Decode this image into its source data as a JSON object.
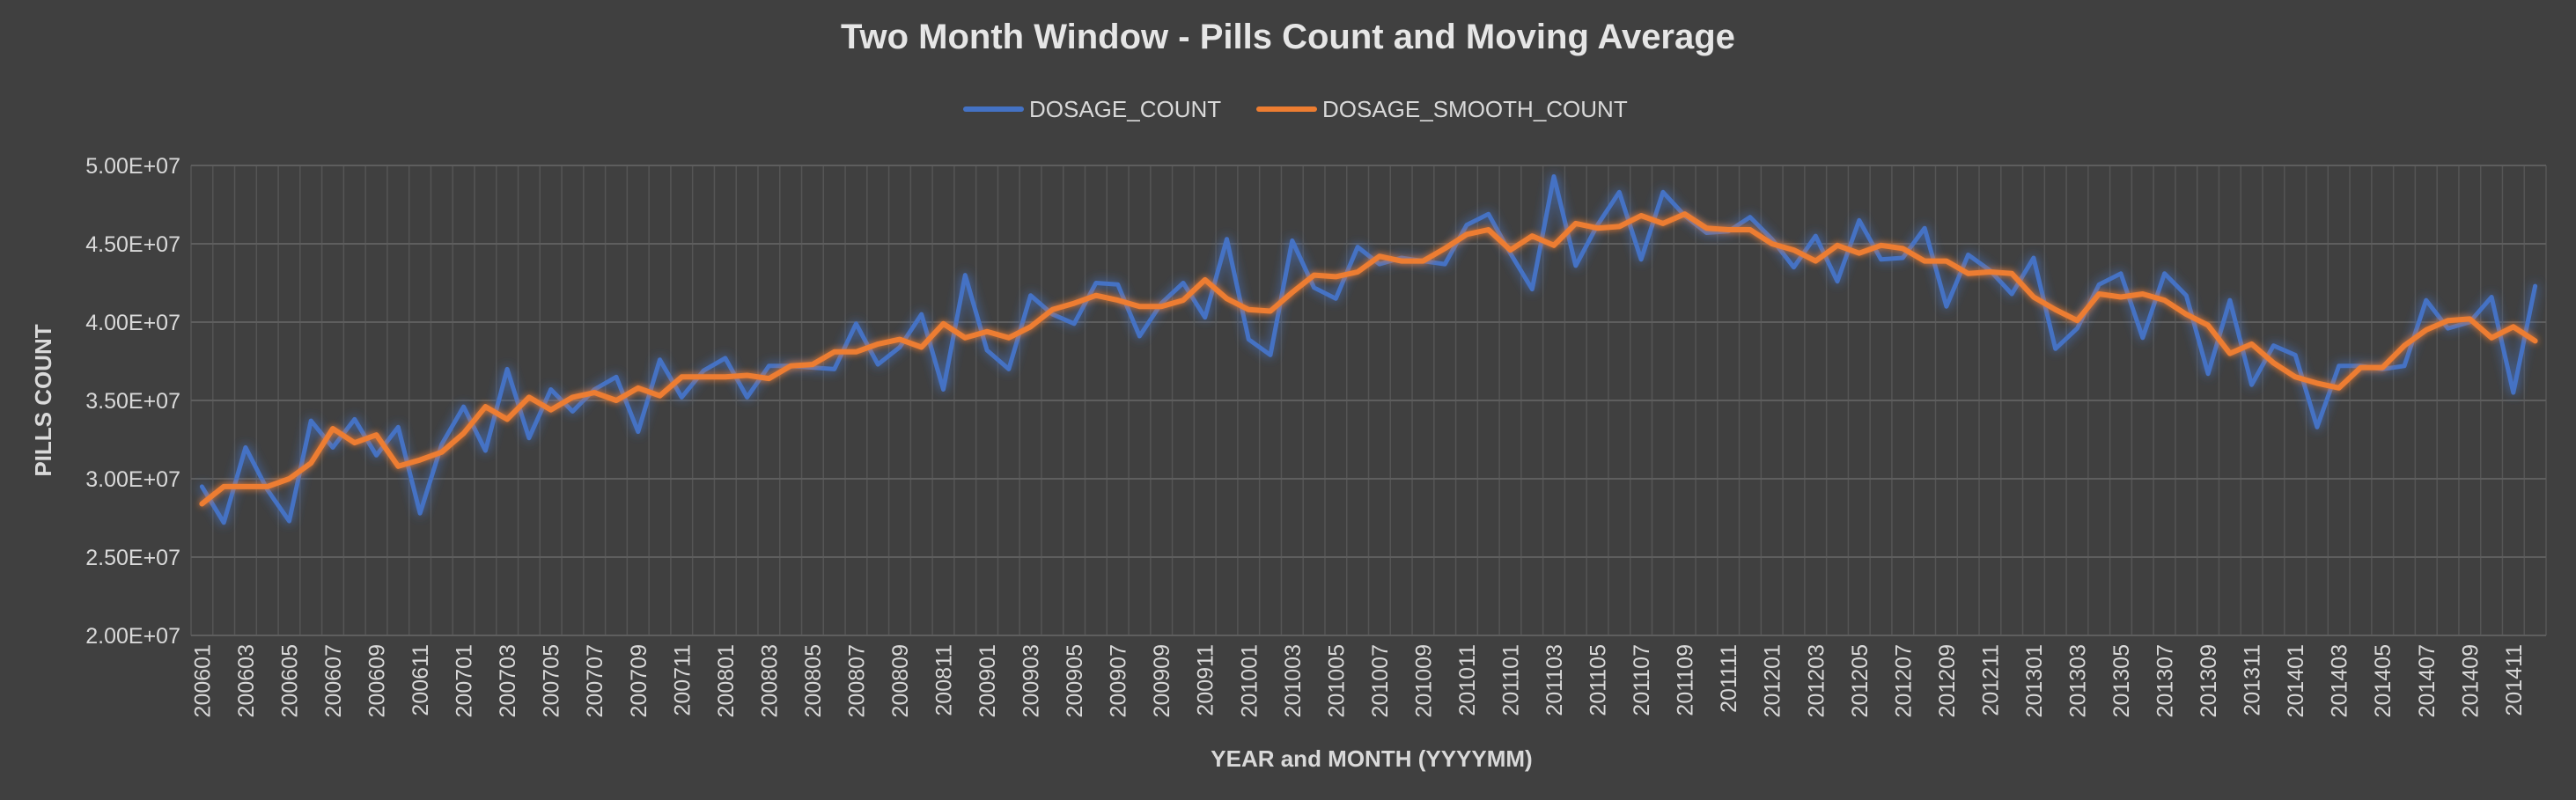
{
  "chart_data": {
    "type": "line",
    "title": "Two Month Window - Pills Count and Moving Average",
    "xlabel": "YEAR and MONTH (YYYYMM)",
    "ylabel": "PILLS COUNT",
    "ylim": [
      20000000,
      50000000
    ],
    "y_ticks": [
      "2.00E+07",
      "2.50E+07",
      "3.00E+07",
      "3.50E+07",
      "4.00E+07",
      "4.50E+07",
      "5.00E+07"
    ],
    "grid": true,
    "legend_position": "top-center",
    "x": [
      "200601",
      "200602",
      "200603",
      "200604",
      "200605",
      "200606",
      "200607",
      "200608",
      "200609",
      "200610",
      "200611",
      "200612",
      "200701",
      "200702",
      "200703",
      "200704",
      "200705",
      "200706",
      "200707",
      "200708",
      "200709",
      "200710",
      "200711",
      "200712",
      "200801",
      "200802",
      "200803",
      "200804",
      "200805",
      "200806",
      "200807",
      "200808",
      "200809",
      "200810",
      "200811",
      "200812",
      "200901",
      "200902",
      "200903",
      "200904",
      "200905",
      "200906",
      "200907",
      "200908",
      "200909",
      "200910",
      "200911",
      "200912",
      "201001",
      "201002",
      "201003",
      "201004",
      "201005",
      "201006",
      "201007",
      "201008",
      "201009",
      "201010",
      "201011",
      "201012",
      "201101",
      "201102",
      "201103",
      "201104",
      "201105",
      "201106",
      "201107",
      "201108",
      "201109",
      "201110",
      "201111",
      "201112",
      "201201",
      "201202",
      "201203",
      "201204",
      "201205",
      "201206",
      "201207",
      "201208",
      "201209",
      "201210",
      "201211",
      "201212",
      "201301",
      "201302",
      "201303",
      "201304",
      "201305",
      "201306",
      "201307",
      "201308",
      "201309",
      "201310",
      "201311",
      "201312",
      "201401",
      "201402",
      "201403",
      "201404",
      "201405",
      "201406",
      "201407",
      "201408",
      "201409",
      "201410",
      "201411",
      "201412"
    ],
    "x_tick_labels": [
      "200601",
      "200603",
      "200605",
      "200607",
      "200609",
      "200611",
      "200701",
      "200703",
      "200705",
      "200707",
      "200709",
      "200711",
      "200801",
      "200803",
      "200805",
      "200807",
      "200809",
      "200811",
      "200901",
      "200903",
      "200905",
      "200907",
      "200909",
      "200911",
      "201001",
      "201003",
      "201005",
      "201007",
      "201009",
      "201011",
      "201101",
      "201103",
      "201105",
      "201107",
      "201109",
      "201111",
      "201201",
      "201203",
      "201205",
      "201207",
      "201209",
      "201211",
      "201301",
      "201303",
      "201305",
      "201307",
      "201309",
      "201311",
      "201401",
      "201403",
      "201405",
      "201407",
      "201409",
      "201411"
    ],
    "series": [
      {
        "name": "DOSAGE_COUNT",
        "color": "#4472c4",
        "values": [
          29500000,
          27200000,
          32000000,
          29300000,
          27300000,
          33700000,
          32000000,
          33800000,
          31500000,
          33300000,
          27800000,
          32200000,
          34600000,
          31800000,
          37000000,
          32600000,
          35700000,
          34300000,
          35700000,
          36500000,
          33000000,
          37600000,
          35200000,
          36900000,
          37700000,
          35200000,
          37200000,
          37200000,
          37100000,
          37000000,
          39900000,
          37300000,
          38400000,
          40500000,
          35700000,
          43000000,
          38200000,
          37000000,
          41700000,
          40500000,
          39900000,
          42500000,
          42400000,
          39100000,
          41200000,
          42500000,
          40300000,
          45300000,
          38900000,
          37900000,
          45200000,
          42200000,
          41500000,
          44800000,
          43700000,
          44100000,
          43900000,
          43700000,
          46200000,
          46900000,
          44400000,
          42100000,
          49300000,
          43600000,
          46200000,
          48300000,
          44000000,
          48300000,
          46800000,
          45700000,
          45800000,
          46700000,
          45300000,
          43500000,
          45500000,
          42600000,
          46500000,
          44000000,
          44100000,
          46000000,
          41000000,
          44300000,
          43300000,
          41800000,
          44100000,
          38300000,
          39600000,
          42400000,
          43100000,
          39000000,
          43100000,
          41700000,
          36700000,
          41400000,
          36000000,
          38500000,
          37900000,
          33300000,
          37200000,
          37200000,
          37000000,
          37200000,
          41400000,
          39600000,
          40000000,
          41600000,
          35500000,
          42300000
        ]
      },
      {
        "name": "DOSAGE_SMOOTH_COUNT",
        "color": "#ed7d31",
        "values": [
          28400000,
          29500000,
          29500000,
          29500000,
          30000000,
          31000000,
          33200000,
          32300000,
          32800000,
          30800000,
          31200000,
          31700000,
          32900000,
          34600000,
          33800000,
          35200000,
          34400000,
          35200000,
          35500000,
          35000000,
          35800000,
          35300000,
          36500000,
          36500000,
          36500000,
          36600000,
          36400000,
          37200000,
          37300000,
          38100000,
          38100000,
          38600000,
          38900000,
          38400000,
          39900000,
          39000000,
          39400000,
          39000000,
          39700000,
          40800000,
          41200000,
          41700000,
          41400000,
          41000000,
          41000000,
          41400000,
          42700000,
          41500000,
          40800000,
          40700000,
          41900000,
          43000000,
          42900000,
          43200000,
          44200000,
          43900000,
          43900000,
          44700000,
          45600000,
          45900000,
          44600000,
          45500000,
          44900000,
          46300000,
          46000000,
          46100000,
          46800000,
          46300000,
          46900000,
          46000000,
          45900000,
          45900000,
          45000000,
          44600000,
          43900000,
          44900000,
          44400000,
          44900000,
          44700000,
          43900000,
          43900000,
          43100000,
          43200000,
          43100000,
          41600000,
          40800000,
          40100000,
          41800000,
          41600000,
          41800000,
          41400000,
          40500000,
          39800000,
          38000000,
          38600000,
          37400000,
          36500000,
          36100000,
          35800000,
          37100000,
          37100000,
          38500000,
          39500000,
          40100000,
          40200000,
          39000000,
          39700000,
          38800000
        ]
      }
    ]
  }
}
